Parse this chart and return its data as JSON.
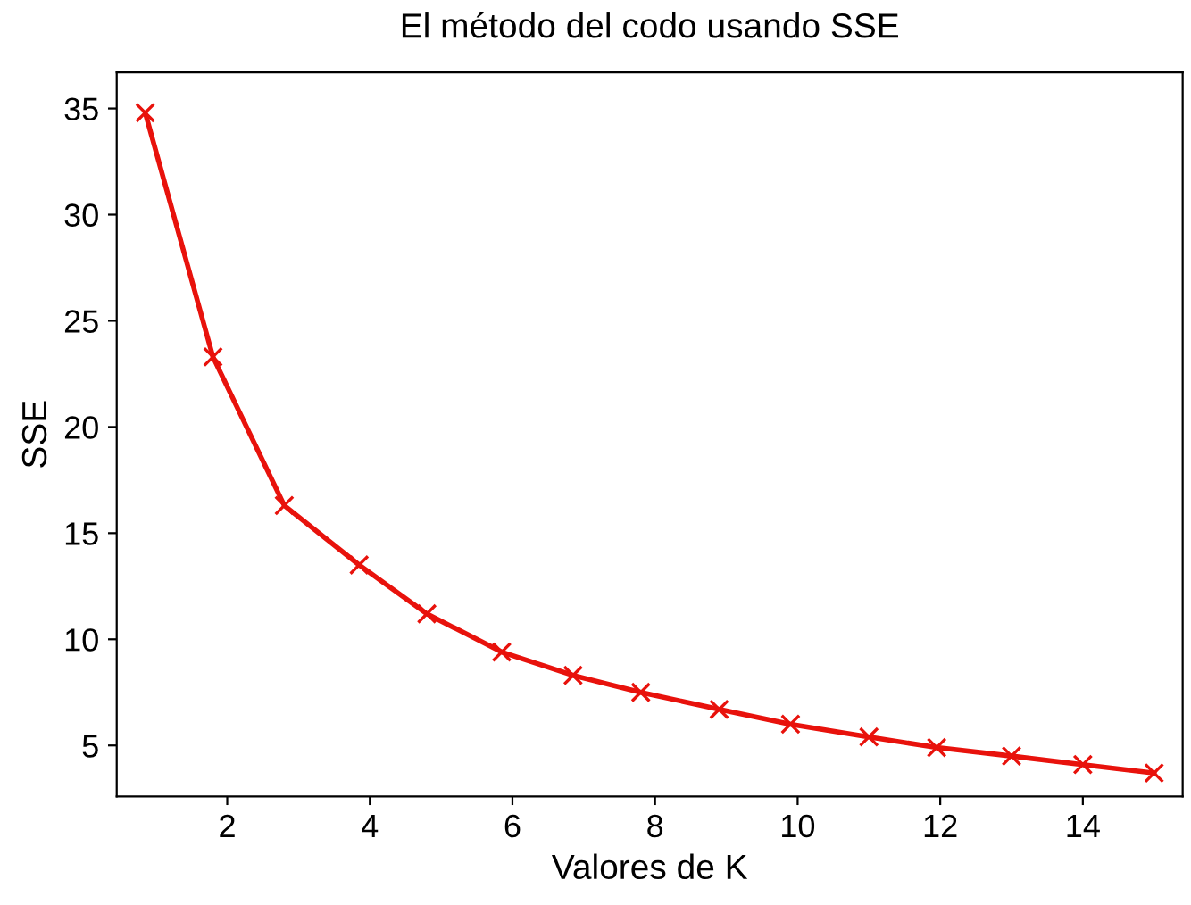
{
  "chart_data": {
    "type": "line",
    "title": "El método del codo usando SSE",
    "xlabel": "Valores de K",
    "ylabel": "SSE",
    "series": [
      {
        "color": "#e8120c",
        "x": [
          0.85,
          1.8,
          2.8,
          3.85,
          4.8,
          5.85,
          6.85,
          7.8,
          8.9,
          9.9,
          11.0,
          11.95,
          13.0,
          14.0,
          15.0
        ],
        "values": [
          34.8,
          23.3,
          16.3,
          13.5,
          11.2,
          9.4,
          8.3,
          7.5,
          6.7,
          6.0,
          5.4,
          4.9,
          4.5,
          4.1,
          3.7
        ]
      }
    ],
    "xlim": [
      0.45,
      15.4
    ],
    "xticks": [
      2,
      4,
      6,
      8,
      10,
      12,
      14
    ],
    "ylim": [
      2.6,
      36.7
    ],
    "yticks": [
      5,
      10,
      15,
      20,
      25,
      30,
      35
    ],
    "marker": "cross",
    "line_style": "solid",
    "grid": false,
    "legend": false
  }
}
